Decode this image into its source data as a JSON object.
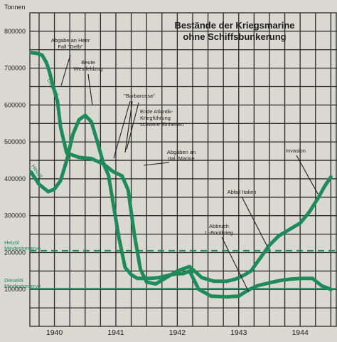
{
  "chart_data": {
    "type": "line",
    "title": "Bestände der Kriegsmarine",
    "subtitle": "ohne Schiffsbunkerung",
    "y_unit_label": "Tonnen",
    "ylim": [
      0,
      850000
    ],
    "xlim": [
      1939.6,
      1944.6
    ],
    "y_ticks": [
      100000,
      200000,
      300000,
      400000,
      500000,
      600000,
      700000,
      800000
    ],
    "y_tick_labels": [
      "100000",
      "200000",
      "300000",
      "400000",
      "500000",
      "600000",
      "700000",
      "800000"
    ],
    "x_ticks": [
      1940,
      1941,
      1942,
      1943,
      1944
    ],
    "x_tick_labels": [
      "1940",
      "1941",
      "1942",
      "1943",
      "1944"
    ],
    "grid": true,
    "series": [
      {
        "name": "Dieselöl",
        "color": "#1f8a5a",
        "x": [
          1939.62,
          1939.72,
          1939.8,
          1939.87,
          1939.92,
          1939.98,
          1940.05,
          1940.1,
          1940.2,
          1940.4,
          1940.6,
          1940.73,
          1940.8,
          1940.88,
          1940.95,
          1941.05,
          1941.15,
          1941.25,
          1941.35,
          1941.45,
          1941.55,
          1941.7,
          1941.85,
          1941.97,
          1942.1,
          1942.2,
          1942.35,
          1942.55,
          1942.8,
          1943.0,
          1943.15,
          1943.3,
          1943.5,
          1943.7,
          1943.85,
          1944.0,
          1944.2,
          1944.35,
          1944.5
        ],
        "y": [
          742000,
          740000,
          735000,
          715000,
          690000,
          650000,
          610000,
          540000,
          470000,
          458000,
          455000,
          445000,
          440000,
          410000,
          340000,
          240000,
          160000,
          140000,
          130000,
          130000,
          130000,
          132000,
          138000,
          142000,
          143000,
          150000,
          100000,
          82000,
          80000,
          82000,
          98000,
          110000,
          118000,
          125000,
          128000,
          130000,
          130000,
          110000,
          100000
        ]
      },
      {
        "name": "Heizöl",
        "color": "#1f8a5a",
        "x": [
          1939.62,
          1939.75,
          1939.9,
          1940.0,
          1940.1,
          1940.2,
          1940.3,
          1940.4,
          1940.5,
          1940.6,
          1940.7,
          1940.8,
          1940.95,
          1941.1,
          1941.2,
          1941.3,
          1941.4,
          1941.5,
          1941.65,
          1941.8,
          1942.0,
          1942.2,
          1942.4,
          1942.6,
          1942.8,
          1942.95,
          1943.1,
          1943.2,
          1943.35,
          1943.5,
          1943.65,
          1943.8,
          1944.0,
          1944.15,
          1944.3,
          1944.4,
          1944.5
        ],
        "y": [
          418000,
          385000,
          365000,
          372000,
          395000,
          450000,
          520000,
          560000,
          572000,
          555000,
          500000,
          440000,
          420000,
          408000,
          370000,
          250000,
          155000,
          120000,
          115000,
          130000,
          150000,
          162000,
          132000,
          122000,
          122000,
          128000,
          140000,
          150000,
          185000,
          220000,
          245000,
          260000,
          280000,
          310000,
          350000,
          380000,
          405000
        ]
      }
    ],
    "reference_lines": [
      {
        "y": 205000,
        "label": "Heizöl",
        "label2": "Mindestreserve",
        "style": "dashed"
      },
      {
        "y": 102000,
        "label": "Dieselöl",
        "label2": "Mindestreserve",
        "style": "solid"
      }
    ],
    "annotations": [
      {
        "lines": [
          "Abgabe an Heer",
          "Fall \"Gelb\""
        ]
      },
      {
        "lines": [
          "Beute",
          "Westfeldzug"
        ]
      },
      {
        "lines": [
          "\"Barbarossa\""
        ]
      },
      {
        "lines": [
          "Ende Atlantik-",
          "Kriegführung",
          "schwere Einheiten"
        ]
      },
      {
        "lines": [
          "Abgaben an",
          "Ital. Marine"
        ]
      },
      {
        "lines": [
          "Invasion"
        ]
      },
      {
        "lines": [
          "Abfall Italien"
        ]
      },
      {
        "lines": [
          "Abbruch",
          "U-Bootkrieg"
        ]
      }
    ],
    "series_labels": [
      "Dieselöl",
      "Heizöl"
    ]
  }
}
